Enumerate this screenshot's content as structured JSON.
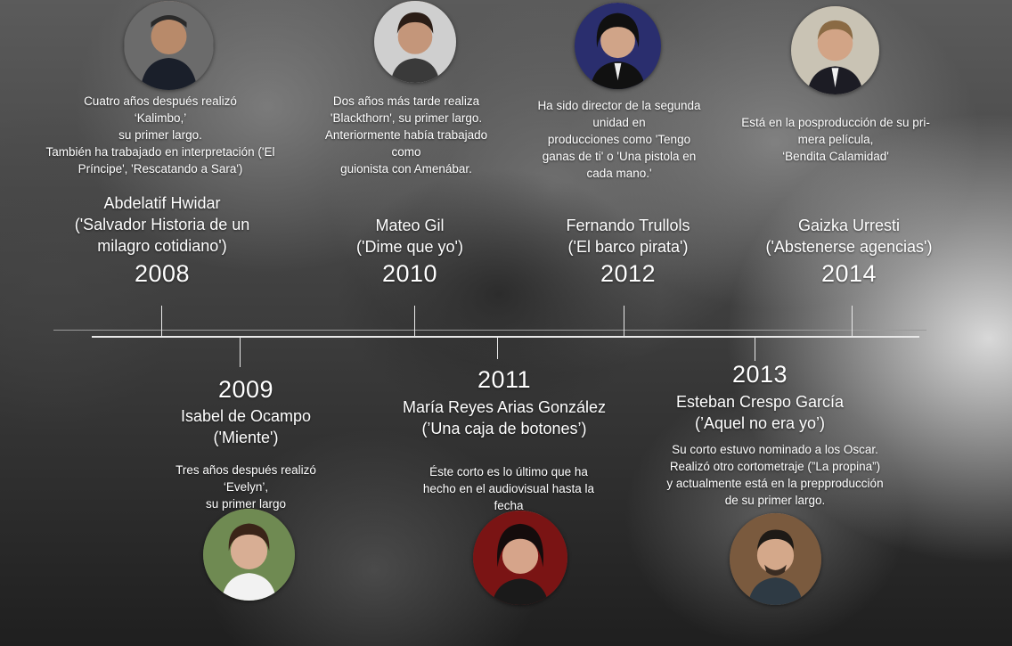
{
  "entries": [
    {
      "year": "2008",
      "name": "Abdelatif Hwidar",
      "film": "('Salvador Historia de un milagro cotidiano')",
      "desc": [
        "Cuatro años después realizó",
        "‘Kalimbo,’",
        "su primer largo.",
        "También ha trabajado en interpretación ('El",
        "Príncipe', 'Rescatando a Sara')"
      ],
      "avatar": "portrait-photo"
    },
    {
      "year": "2009",
      "name": "Isabel de Ocampo",
      "film": "('Miente')",
      "desc": [
        "Tres años después realizó",
        "‘Evelyn’,",
        "su primer largo"
      ],
      "avatar": "portrait-photo"
    },
    {
      "year": "2010",
      "name": "Mateo Gil",
      "film": "('Dime que yo')",
      "desc": [
        "Dos años más tarde realiza",
        "'Blackthorn', su primer largo.",
        "Anteriormente había trabajado",
        "como",
        "guionista con Amenábar."
      ],
      "avatar": "portrait-photo"
    },
    {
      "year": "2011",
      "name": "María Reyes Arias González",
      "film": "(’Una caja de botones’)",
      "desc": [
        "Éste corto es lo último que ha",
        "hecho en el audiovisual hasta la",
        "fecha"
      ],
      "avatar": "portrait-photo"
    },
    {
      "year": "2012",
      "name": "Fernando Trullols",
      "film": "('El barco pirata')",
      "desc": [
        "Ha sido director de la segunda",
        "unidad en",
        "producciones como 'Tengo",
        "ganas de ti' o 'Una pistola en",
        "cada mano.'"
      ],
      "avatar": "portrait-photo"
    },
    {
      "year": "2013",
      "name": "Esteban Crespo García",
      "film": "(’Aquel no era yo’)",
      "desc": [
        "Su corto estuvo nominado a los Oscar.",
        "Realizó otro cortometraje (”La propina”)",
        "y actualmente está en la prepproducción",
        "de su primer largo."
      ],
      "avatar": "portrait-photo"
    },
    {
      "year": "2014",
      "name": "Gaizka Urresti",
      "film": "('Abstenerse agencias')",
      "desc": [
        "Está en la posproducción de su pri-",
        "mera película,",
        "‘Bendita Calamidad'"
      ],
      "avatar": "portrait-photo"
    }
  ]
}
